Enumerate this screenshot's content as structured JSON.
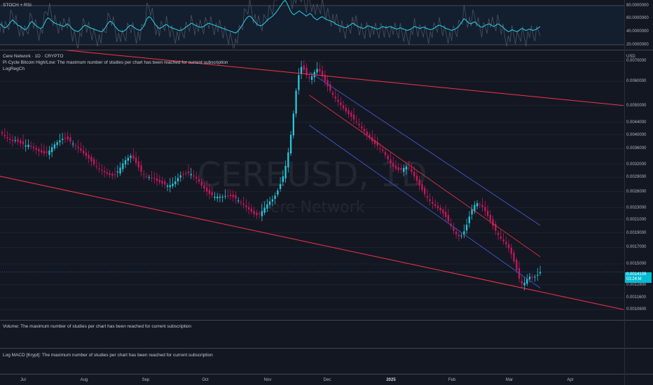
{
  "oscillator": {
    "title": "STOCH + RSI",
    "y_ticks": [
      "80.0000000",
      "60.0000000",
      "40.0000000",
      "20.0000000"
    ],
    "rsi_values": [
      52,
      50,
      47,
      46,
      48,
      51,
      55,
      58,
      56,
      53,
      50,
      49,
      47,
      45,
      43,
      44,
      48,
      53,
      56,
      53,
      50,
      48,
      46,
      45,
      47,
      52,
      58,
      61,
      60,
      57,
      55,
      53,
      52,
      51,
      50,
      49,
      48,
      50,
      52,
      50,
      47,
      44,
      42,
      41,
      40,
      42,
      45,
      48,
      50,
      49,
      47,
      46,
      45,
      44,
      43,
      42,
      41,
      40,
      41,
      44,
      49,
      53,
      56,
      55,
      52,
      48,
      45,
      42,
      41,
      40,
      41,
      43,
      46,
      49,
      50,
      48,
      46,
      44,
      43,
      42,
      44,
      48,
      54,
      60,
      63,
      62,
      58,
      54,
      50,
      47,
      45,
      46,
      48,
      50,
      51,
      49,
      47,
      46,
      45,
      44,
      43,
      42,
      42,
      43,
      45,
      47,
      49,
      51,
      53,
      52,
      50,
      49,
      48,
      47,
      47,
      48,
      50,
      52,
      53,
      52,
      51,
      50,
      49,
      48,
      47,
      46,
      45,
      44,
      43,
      42,
      41,
      40,
      39,
      38,
      40,
      43,
      47,
      51,
      56,
      60,
      63,
      64,
      62,
      58,
      55,
      52,
      50,
      49,
      50,
      52,
      55,
      58,
      60,
      62,
      64,
      67,
      70,
      74,
      78,
      82,
      86,
      88,
      84,
      78,
      72,
      68,
      66,
      68,
      70,
      72,
      70,
      68,
      66,
      64,
      66,
      68,
      66,
      62,
      60,
      58,
      60,
      62,
      63,
      61,
      59,
      58,
      57,
      56,
      55,
      53,
      51,
      50,
      49,
      48,
      47,
      46,
      47,
      49,
      51,
      53,
      52,
      50,
      48,
      47,
      46,
      45,
      46,
      48,
      49,
      48,
      47,
      46,
      45,
      44,
      45,
      46,
      48,
      47,
      46,
      47,
      48,
      47,
      46,
      45,
      44,
      45,
      46,
      45,
      44,
      43,
      42,
      43,
      44,
      46,
      48,
      47,
      46,
      45,
      46,
      47,
      46,
      45,
      44,
      43,
      44,
      45,
      47,
      49,
      50,
      49,
      48,
      46,
      45,
      44,
      43,
      42,
      43,
      44,
      46,
      48,
      52,
      56,
      60,
      58,
      55,
      53,
      52,
      54,
      55,
      53,
      50,
      48,
      47,
      48,
      50,
      51,
      52,
      51,
      49,
      48,
      50,
      52,
      51,
      49,
      47,
      44,
      42,
      40,
      41,
      43,
      42,
      41,
      40,
      42,
      44,
      45,
      43,
      42,
      43,
      44,
      43,
      42,
      43,
      44,
      46,
      48
    ],
    "color_rsi": "#26c6da"
  },
  "main": {
    "legend": [
      "Cere Network · 1D · CRYPTO",
      "Pi Cycle Bitcoin High/Low: The maximum number of studies per chart has been reached for current subscription",
      "LogRegCh"
    ],
    "watermark_symbol": "CEREUSD, 1D",
    "watermark_name": "Cere Network",
    "currency": "USD",
    "y_ticks": [
      "0.0070000",
      "0.0060000",
      "0.0050000",
      "0.0044000",
      "0.0040000",
      "0.0036000",
      "0.0032000",
      "0.0029000",
      "0.0026000",
      "0.0023000",
      "0.0021000",
      "0.0019000",
      "0.0017000",
      "0.0015000",
      "0.0012800",
      "0.0011600",
      "0.0010600"
    ],
    "last_price": "0.0014109",
    "countdown": "03:24:M",
    "colors": {
      "up": "#26c6da",
      "down": "#c2185b",
      "trend": "#f23645",
      "channel": "#3f51b5",
      "last_price": "#00bcd4"
    }
  },
  "chart_data": {
    "type": "candlestick",
    "title": "Cere Network · 1D · CRYPTO",
    "y_scale": "log",
    "ylim": [
      0.00098,
      0.0076
    ],
    "x_ticks": [
      "Jul",
      "Aug",
      "Sep",
      "Oct",
      "Nov",
      "Dec",
      "2025",
      "Feb",
      "Mar",
      "Apr"
    ],
    "close": [
      0.00404,
      0.00396,
      0.0039,
      0.00385,
      0.00381,
      0.00384,
      0.00379,
      0.00375,
      0.00372,
      0.00369,
      0.00371,
      0.00367,
      0.00362,
      0.00357,
      0.00353,
      0.0035,
      0.00347,
      0.00349,
      0.00355,
      0.00364,
      0.00372,
      0.00378,
      0.00383,
      0.00388,
      0.00391,
      0.00386,
      0.0038,
      0.00374,
      0.00368,
      0.00362,
      0.00355,
      0.00348,
      0.00341,
      0.00334,
      0.00327,
      0.0032,
      0.00314,
      0.00309,
      0.00305,
      0.00301,
      0.00298,
      0.00295,
      0.00293,
      0.00296,
      0.00303,
      0.00312,
      0.00322,
      0.0033,
      0.00336,
      0.00341,
      0.00334,
      0.00323,
      0.00312,
      0.00302,
      0.00296,
      0.00292,
      0.0029,
      0.00288,
      0.00286,
      0.00282,
      0.00279,
      0.00276,
      0.00274,
      0.00272,
      0.00273,
      0.00276,
      0.00281,
      0.00288,
      0.00294,
      0.00296,
      0.00298,
      0.00299,
      0.00297,
      0.00293,
      0.00287,
      0.0028,
      0.00272,
      0.00266,
      0.0026,
      0.00255,
      0.00252,
      0.0025,
      0.0025,
      0.0025,
      0.0025,
      0.00251,
      0.00252,
      0.00251,
      0.00249,
      0.00246,
      0.00243,
      0.00239,
      0.00235,
      0.00231,
      0.00227,
      0.00223,
      0.00219,
      0.00217,
      0.00219,
      0.00224,
      0.0023,
      0.00236,
      0.00241,
      0.00245,
      0.00252,
      0.00262,
      0.00275,
      0.00292,
      0.00316,
      0.0035,
      0.004,
      0.0047,
      0.0056,
      0.0063,
      0.0067,
      0.00655,
      0.0063,
      0.00615,
      0.00625,
      0.00645,
      0.0066,
      0.00648,
      0.00625,
      0.006,
      0.00578,
      0.0056,
      0.00542,
      0.00527,
      0.00514,
      0.00501,
      0.00489,
      0.00478,
      0.00468,
      0.00459,
      0.0045,
      0.0044,
      0.0043,
      0.0042,
      0.0041,
      0.004,
      0.0039,
      0.0038,
      0.00373,
      0.00368,
      0.00362,
      0.00354,
      0.00343,
      0.00332,
      0.00322,
      0.00314,
      0.00309,
      0.00306,
      0.00307,
      0.00311,
      0.00314,
      0.0031,
      0.00302,
      0.00292,
      0.00282,
      0.00272,
      0.00263,
      0.00255,
      0.00248,
      0.00242,
      0.00237,
      0.00233,
      0.00229,
      0.00225,
      0.0022,
      0.00214,
      0.00207,
      0.002,
      0.00193,
      0.00188,
      0.00185,
      0.00186,
      0.00192,
      0.00202,
      0.00215,
      0.00227,
      0.00235,
      0.00238,
      0.00236,
      0.00231,
      0.00224,
      0.00216,
      0.00208,
      0.002,
      0.00193,
      0.00187,
      0.00182,
      0.00178,
      0.00174,
      0.00169,
      0.00162,
      0.00153,
      0.00143,
      0.00134,
      0.00129,
      0.0013,
      0.00134,
      0.00136,
      0.00135,
      0.00136,
      0.00138,
      0.00141
    ],
    "channel_upper": {
      "from": [
        0,
        0.008
      ],
      "to": [
        890,
        0.005
      ]
    },
    "channel_lower": {
      "from": [
        0,
        0.00292
      ],
      "to": [
        890,
        0.00106
      ]
    }
  },
  "volume_pane": {
    "label": "Volume: The maximum number of studies per chart has been reached for current subscription"
  },
  "macd_pane": {
    "label": "Log MACD [Krypt]: The maximum number of studies per chart has been reached for current subscription"
  }
}
